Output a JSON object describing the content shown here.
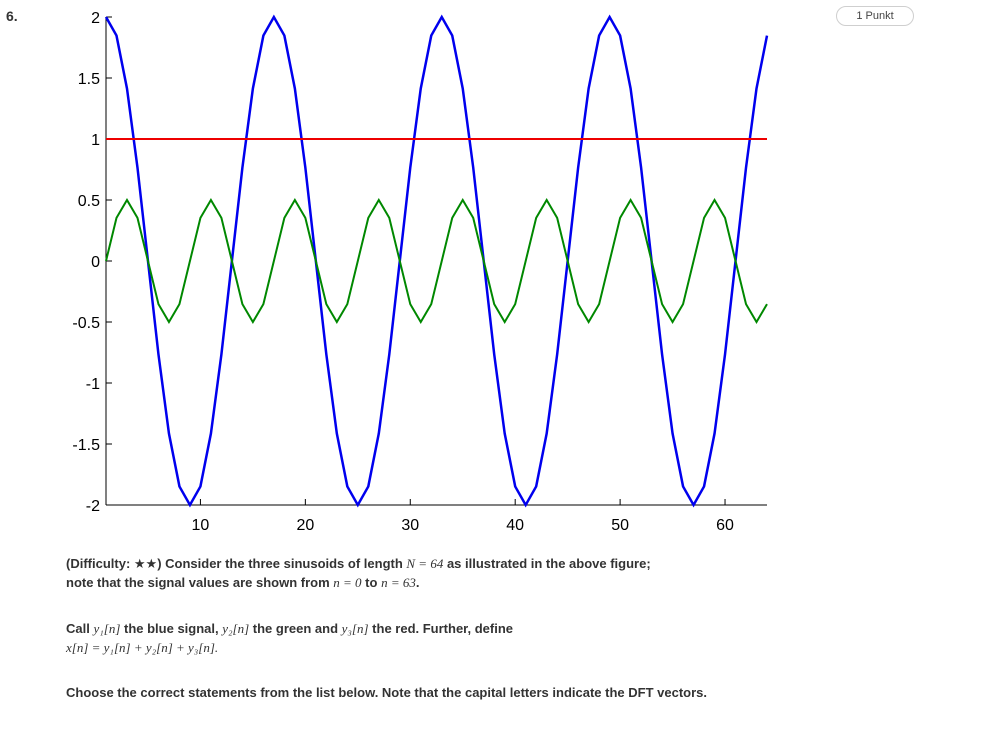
{
  "question": {
    "number": "6.",
    "points": "1 Punkt"
  },
  "chart_data": {
    "type": "line",
    "xlim": [
      1,
      64
    ],
    "ylim": [
      -2,
      2
    ],
    "xticks": [
      10,
      20,
      30,
      40,
      50,
      60
    ],
    "xtick_labels": [
      "10",
      "20",
      "30",
      "40",
      "50",
      "60"
    ],
    "yticks": [
      2,
      1.5,
      1,
      0.5,
      0,
      -0.5,
      -1,
      -1.5,
      -2
    ],
    "ytick_labels": [
      "2",
      "1.5",
      "1",
      "0.5",
      "0",
      "-0.5",
      "-1",
      "-1.5",
      "-2"
    ],
    "grid": false,
    "series": [
      {
        "color": "#0000ee",
        "amplitude": 2,
        "cycles": 4,
        "phase_deg": 0,
        "offset": 0,
        "description": "y = 2 cos(2*pi*4*n/64), n = 0..63"
      },
      {
        "color": "#008800",
        "amplitude": 0.5,
        "cycles": 8,
        "phase_deg": -90,
        "offset": 0,
        "description": "y = 0.5 sin(2*pi*8*n/64), n = 0..63"
      },
      {
        "color": "#ee0000",
        "amplitude": 0,
        "cycles": 0,
        "phase_deg": 0,
        "offset": 1,
        "description": "y = 1"
      }
    ]
  },
  "text": {
    "p1_prefix": "(Difficulty: ",
    "p1_stars": "★★",
    "p1_mid": ") Consider the three sinusoids of length ",
    "p1_N": "N = 64",
    "p1_rest": " as illustrated in the above figure;",
    "p1_line2_a": "note that the signal values are shown from ",
    "p1_from": "n = 0",
    "p1_to_word": " to ",
    "p1_to": "n = 63",
    "p1_end": ".",
    "p2_a": "Call ",
    "p2_y1": "y₁[n]",
    "p2_b": " the blue signal, ",
    "p2_y2": "y₂[n]",
    "p2_c": " the green and ",
    "p2_y3": "y₃[n]",
    "p2_d": " the red. Further, define",
    "p2_formula": "x[n] = y₁[n] + y₂[n] + y₃[n].",
    "p3": "Choose the correct statements from the list below. Note that the capital letters indicate the DFT vectors."
  }
}
